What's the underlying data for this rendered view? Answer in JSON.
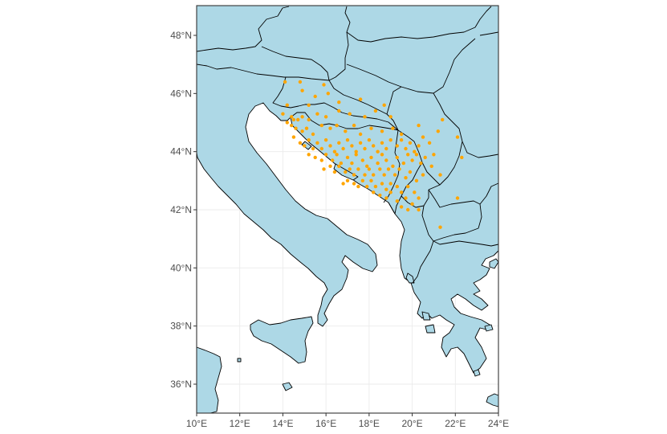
{
  "chart_data": {
    "type": "scatter",
    "title": "",
    "xlabel": "",
    "ylabel": "",
    "xlim": [
      10,
      24
    ],
    "ylim": [
      35,
      49
    ],
    "x_ticks": [
      {
        "value": 10,
        "label": "10°E"
      },
      {
        "value": 12,
        "label": "12°E"
      },
      {
        "value": 14,
        "label": "14°E"
      },
      {
        "value": 16,
        "label": "16°E"
      },
      {
        "value": 18,
        "label": "18°E"
      },
      {
        "value": 20,
        "label": "20°E"
      },
      {
        "value": 22,
        "label": "22°E"
      },
      {
        "value": 24,
        "label": "24°E"
      }
    ],
    "y_ticks": [
      {
        "value": 36,
        "label": "36°N"
      },
      {
        "value": 38,
        "label": "38°N"
      },
      {
        "value": 40,
        "label": "40°N"
      },
      {
        "value": 42,
        "label": "42°N"
      },
      {
        "value": 44,
        "label": "44°N"
      },
      {
        "value": 46,
        "label": "46°N"
      },
      {
        "value": 48,
        "label": "48°N"
      }
    ],
    "grid": true,
    "legend": "none",
    "colors": {
      "land": "#add8e6",
      "sea": "#ffffff",
      "border": "#000000",
      "points": "#ffa500",
      "grid": "#ebebeb",
      "frame": "#333333"
    },
    "points": [
      [
        14.1,
        46.4
      ],
      [
        14.8,
        46.4
      ],
      [
        15.9,
        46.3
      ],
      [
        14.9,
        46.1
      ],
      [
        16.1,
        46.0
      ],
      [
        15.5,
        45.9
      ],
      [
        14.2,
        45.6
      ],
      [
        15.2,
        45.6
      ],
      [
        16.6,
        45.7
      ],
      [
        17.6,
        45.8
      ],
      [
        18.7,
        45.6
      ],
      [
        14.0,
        45.3
      ],
      [
        14.4,
        45.2
      ],
      [
        14.5,
        45.1
      ],
      [
        14.2,
        45.0
      ],
      [
        14.7,
        45.1
      ],
      [
        14.9,
        45.2
      ],
      [
        15.2,
        45.1
      ],
      [
        15.6,
        45.3
      ],
      [
        16.0,
        45.2
      ],
      [
        16.6,
        45.4
      ],
      [
        17.1,
        45.3
      ],
      [
        17.8,
        45.2
      ],
      [
        18.3,
        45.4
      ],
      [
        19.0,
        45.2
      ],
      [
        21.4,
        45.1
      ],
      [
        14.4,
        44.9
      ],
      [
        14.6,
        44.8
      ],
      [
        14.9,
        44.7
      ],
      [
        15.1,
        44.8
      ],
      [
        15.4,
        44.6
      ],
      [
        15.8,
        44.9
      ],
      [
        16.2,
        44.8
      ],
      [
        16.5,
        44.9
      ],
      [
        16.9,
        44.7
      ],
      [
        17.3,
        44.9
      ],
      [
        17.6,
        44.6
      ],
      [
        18.1,
        44.8
      ],
      [
        18.6,
        44.7
      ],
      [
        19.1,
        44.8
      ],
      [
        19.5,
        44.6
      ],
      [
        20.3,
        44.9
      ],
      [
        21.2,
        44.7
      ],
      [
        22.1,
        44.5
      ],
      [
        14.5,
        44.5
      ],
      [
        14.8,
        44.3
      ],
      [
        15.0,
        44.2
      ],
      [
        15.2,
        44.4
      ],
      [
        15.4,
        44.1
      ],
      [
        15.6,
        44.3
      ],
      [
        15.8,
        44.1
      ],
      [
        16.0,
        44.4
      ],
      [
        16.2,
        44.2
      ],
      [
        16.4,
        44.0
      ],
      [
        16.6,
        44.3
      ],
      [
        16.8,
        44.1
      ],
      [
        17.0,
        44.4
      ],
      [
        17.2,
        44.2
      ],
      [
        17.4,
        44.0
      ],
      [
        17.6,
        44.3
      ],
      [
        17.8,
        44.1
      ],
      [
        18.0,
        44.4
      ],
      [
        18.2,
        44.2
      ],
      [
        18.4,
        44.0
      ],
      [
        18.6,
        44.3
      ],
      [
        18.8,
        44.1
      ],
      [
        19.0,
        44.4
      ],
      [
        19.3,
        44.2
      ],
      [
        19.5,
        44.4
      ],
      [
        19.7,
        44.1
      ],
      [
        19.9,
        44.3
      ],
      [
        20.1,
        44.0
      ],
      [
        20.3,
        44.2
      ],
      [
        20.5,
        44.5
      ],
      [
        20.8,
        44.3
      ],
      [
        21.0,
        43.9
      ],
      [
        22.3,
        43.8
      ],
      [
        15.2,
        43.9
      ],
      [
        15.5,
        43.8
      ],
      [
        15.8,
        43.7
      ],
      [
        16.0,
        43.9
      ],
      [
        16.3,
        43.7
      ],
      [
        16.5,
        43.9
      ],
      [
        16.7,
        43.6
      ],
      [
        17.0,
        43.8
      ],
      [
        17.2,
        43.6
      ],
      [
        17.4,
        43.9
      ],
      [
        17.7,
        43.7
      ],
      [
        17.9,
        43.5
      ],
      [
        18.1,
        43.8
      ],
      [
        18.4,
        43.6
      ],
      [
        18.6,
        43.9
      ],
      [
        18.8,
        43.7
      ],
      [
        19.1,
        43.5
      ],
      [
        19.3,
        43.8
      ],
      [
        19.6,
        43.6
      ],
      [
        19.8,
        43.9
      ],
      [
        20.0,
        43.7
      ],
      [
        20.2,
        43.9
      ],
      [
        20.4,
        43.6
      ],
      [
        20.6,
        43.8
      ],
      [
        20.9,
        43.5
      ],
      [
        21.3,
        43.2
      ],
      [
        15.9,
        43.4
      ],
      [
        16.2,
        43.5
      ],
      [
        16.4,
        43.3
      ],
      [
        16.6,
        43.5
      ],
      [
        16.9,
        43.3
      ],
      [
        17.1,
        43.4
      ],
      [
        17.3,
        43.2
      ],
      [
        17.5,
        43.4
      ],
      [
        17.8,
        43.2
      ],
      [
        18.0,
        43.4
      ],
      [
        18.2,
        43.2
      ],
      [
        18.5,
        43.4
      ],
      [
        18.7,
        43.2
      ],
      [
        18.9,
        43.4
      ],
      [
        19.2,
        43.2
      ],
      [
        19.4,
        43.4
      ],
      [
        19.7,
        43.1
      ],
      [
        19.9,
        43.3
      ],
      [
        20.2,
        43.0
      ],
      [
        20.5,
        43.2
      ],
      [
        16.8,
        42.9
      ],
      [
        17.0,
        43.0
      ],
      [
        17.3,
        42.9
      ],
      [
        17.5,
        42.8
      ],
      [
        17.7,
        43.0
      ],
      [
        17.9,
        42.8
      ],
      [
        18.1,
        43.0
      ],
      [
        18.3,
        42.8
      ],
      [
        18.6,
        42.9
      ],
      [
        18.8,
        42.7
      ],
      [
        19.0,
        42.9
      ],
      [
        19.3,
        42.8
      ],
      [
        19.5,
        42.6
      ],
      [
        19.8,
        42.8
      ],
      [
        20.1,
        42.6
      ],
      [
        20.3,
        42.4
      ],
      [
        18.2,
        42.6
      ],
      [
        18.5,
        42.5
      ],
      [
        18.8,
        42.4
      ],
      [
        19.0,
        42.6
      ],
      [
        19.3,
        42.3
      ],
      [
        19.5,
        42.1
      ],
      [
        19.7,
        42.4
      ],
      [
        20.0,
        42.2
      ],
      [
        19.8,
        42.0
      ],
      [
        20.3,
        42.0
      ],
      [
        22.1,
        42.4
      ],
      [
        21.3,
        41.4
      ]
    ],
    "point_size": 2.2
  }
}
